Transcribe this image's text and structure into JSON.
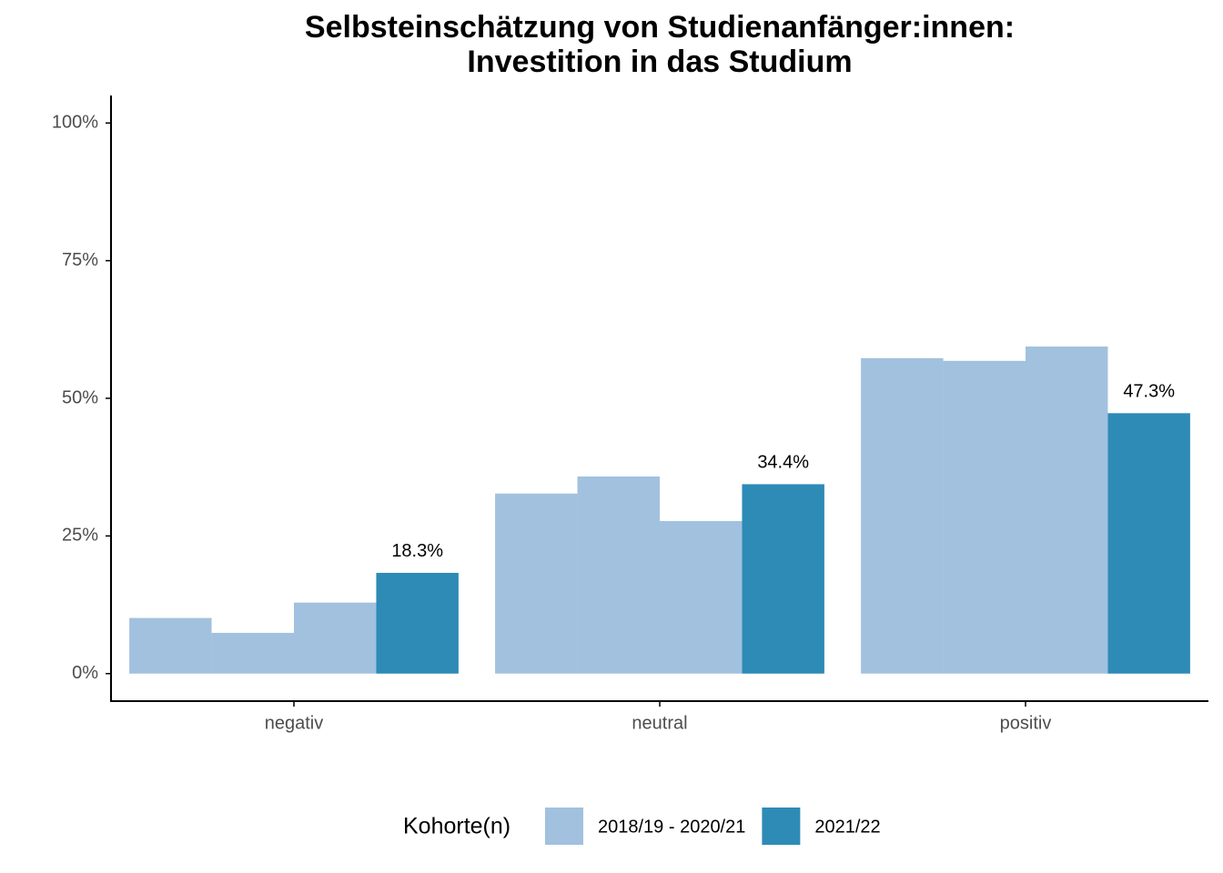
{
  "chart_data": {
    "type": "grouped_bar",
    "title": "Selbsteinschätzung von Studienanfänger:innen:",
    "subtitle": "Investition in das Studium",
    "categories": [
      "negativ",
      "neutral",
      "positiv"
    ],
    "series": [
      {
        "name": "2018/19 - 2020/21",
        "color": "#a1c1de",
        "values": [
          [
            10.1,
            7.4,
            12.9
          ],
          [
            32.7,
            35.8,
            27.7
          ],
          [
            57.3,
            56.8,
            59.4
          ]
        ]
      },
      {
        "name": "2021/22",
        "color": "#2e8bb6",
        "values": [
          18.3,
          34.4,
          47.3
        ],
        "value_labels": [
          "18.3%",
          "34.4%",
          "47.3%"
        ]
      }
    ],
    "ylim": [
      -5,
      105
    ],
    "yticks": [
      {
        "value": 0,
        "label": "0%"
      },
      {
        "value": 25,
        "label": "25%"
      },
      {
        "value": 50,
        "label": "50%"
      },
      {
        "value": 75,
        "label": "75%"
      },
      {
        "value": 100,
        "label": "100%"
      }
    ],
    "legend_title": "Kohorte(n)",
    "legend_position": "bottom"
  }
}
